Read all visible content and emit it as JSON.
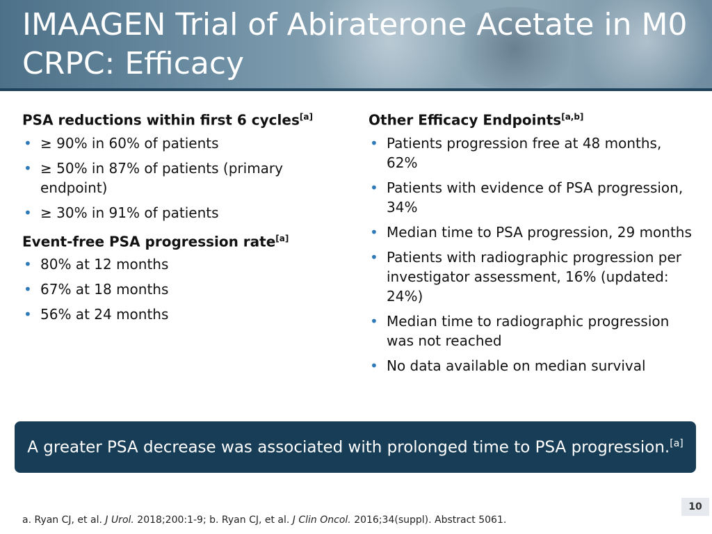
{
  "header": {
    "title": "IMAAGEN Trial of Abiraterone Acetate in M0 CRPC: Efficacy"
  },
  "left": {
    "psa_heading": "PSA reductions within first 6 cycles",
    "psa_heading_ref": "[a]",
    "psa_items": [
      "≥ 90% in 60% of patients",
      "≥ 50% in 87% of patients (primary endpoint)",
      "≥ 30% in 91% of patients"
    ],
    "event_heading": "Event-free PSA progression rate",
    "event_heading_ref": "[a]",
    "event_items": [
      "80% at 12 months",
      "67% at 18 months",
      "56% at 24 months"
    ]
  },
  "right": {
    "heading": "Other Efficacy Endpoints",
    "heading_ref": "[a,b]",
    "items": [
      "Patients progression free at 48 months, 62%",
      "Patients with evidence of PSA progression, 34%",
      "Median time to PSA progression, 29 months",
      "Patients with radiographic progression per investigator assessment, 16% (updated: 24%)",
      "Median time to radiographic progression was not reached",
      "No data available on median survival"
    ]
  },
  "callout": {
    "text": "A greater PSA decrease was associated with prolonged time to PSA progression.",
    "ref": "[a]"
  },
  "page_number": "10",
  "footnote": {
    "a_prefix": "a. Ryan CJ, et al. ",
    "a_journal": "J Urol.",
    "a_rest": " 2018;200:1-9; b. Ryan CJ, et al. ",
    "b_journal": "J Clin Oncol.",
    "b_rest": " 2016;34(suppl). Abstract 5061."
  },
  "colors": {
    "header_line": "#1d4259",
    "callout_bg": "#183d56",
    "bullet": "#2e7ab8"
  }
}
